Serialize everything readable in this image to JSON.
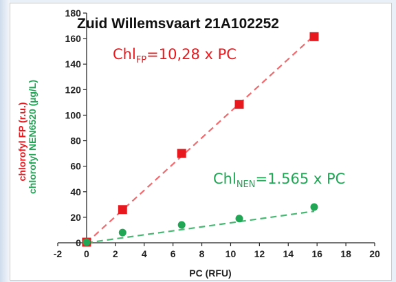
{
  "colors": {
    "fp": "#e8191e",
    "fp_line": "#f06a6e",
    "nen": "#21a655",
    "nen_line": "#47b872",
    "axis": "#222222"
  },
  "chart_data": {
    "type": "scatter",
    "title": "Zuid Willemsvaart 21A102252",
    "xlabel": "PC (RFU)",
    "ylabel_primary": "chlorofyl FP (r.u.)",
    "ylabel_secondary": "chlorofyl NEN6520 (µg/L)",
    "xlim": [
      -2,
      20
    ],
    "ylim": [
      0,
      180
    ],
    "x_ticks": [
      -2,
      0,
      2,
      4,
      6,
      8,
      10,
      12,
      14,
      16,
      18,
      20
    ],
    "y_ticks": [
      0,
      20,
      40,
      60,
      80,
      100,
      120,
      140,
      160,
      180
    ],
    "grid": false,
    "legend": "none",
    "series": [
      {
        "key": "fp",
        "marker": "square",
        "x": [
          0.0,
          2.5,
          6.6,
          10.6,
          15.8
        ],
        "y": [
          0.5,
          26,
          70,
          108.5,
          161.5
        ],
        "fit_slope": 10.28,
        "equation": {
          "base": "Chl",
          "sub": "FP",
          "rest": "=10,28 x PC"
        }
      },
      {
        "key": "nen",
        "marker": "circle",
        "x": [
          0.0,
          2.5,
          6.6,
          10.6,
          15.8
        ],
        "y": [
          0.5,
          8,
          14,
          19,
          28
        ],
        "fit_slope": 1.565,
        "equation": {
          "base": "Chl",
          "sub": "NEN",
          "rest": "=1.565 x PC"
        }
      }
    ]
  }
}
